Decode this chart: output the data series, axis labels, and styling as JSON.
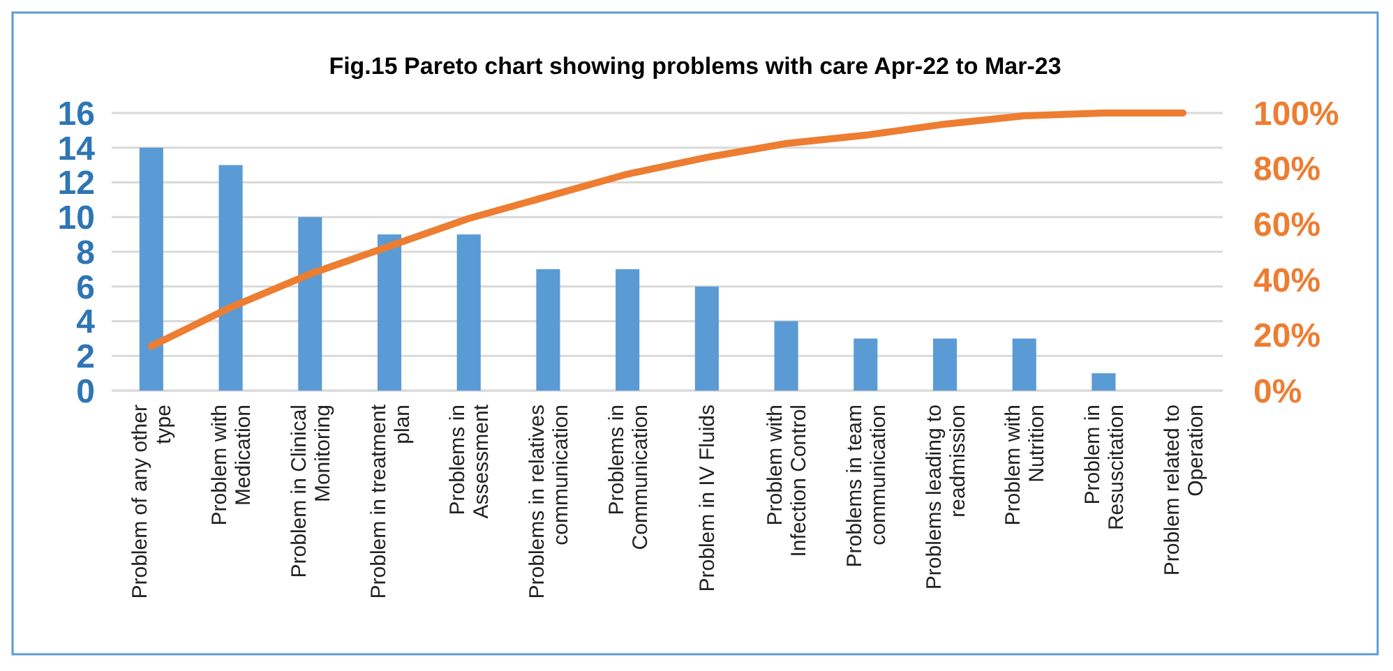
{
  "chart_data": {
    "type": "bar",
    "title": "Fig.15 Pareto chart showing problems with care Apr-22 to Mar-23",
    "categories": [
      "Problem of any other type",
      "Problem with Medication",
      "Problem in Clinical Monitoring",
      "Problem in treatment plan",
      "Problems in Assessment",
      "Problems in relatives communication",
      "Problems in Communication",
      "Problem in IV Fluids",
      "Problem with Infection Control",
      "Problems in team communication",
      "Problems leading to readmission",
      "Problem with Nutrition",
      "Problem in Resuscitation",
      "Problem related to Operation"
    ],
    "series": [
      {
        "color": "#5b9bd5",
        "values": [
          14,
          13,
          10,
          9,
          9,
          7,
          7,
          6,
          4,
          3,
          3,
          3,
          1,
          0
        ]
      },
      {
        "type": "line",
        "axis": "y2",
        "color": "#ed7d31",
        "values": [
          16,
          30,
          42,
          52,
          62,
          70,
          78,
          84,
          89,
          92,
          96,
          99,
          100,
          100
        ]
      }
    ],
    "ylim": [
      0,
      16
    ],
    "yticks": [
      0,
      2,
      4,
      6,
      8,
      10,
      12,
      14,
      16
    ],
    "y2lim": [
      0,
      100
    ],
    "y2ticks": [
      {
        "value": 0,
        "label": "0%"
      },
      {
        "value": 20,
        "label": "20%"
      },
      {
        "value": 40,
        "label": "40%"
      },
      {
        "value": 60,
        "label": "60%"
      },
      {
        "value": 80,
        "label": "80%"
      },
      {
        "value": 100,
        "label": "100%"
      }
    ],
    "grid": "y",
    "marker": "none",
    "line_style": "solid"
  }
}
